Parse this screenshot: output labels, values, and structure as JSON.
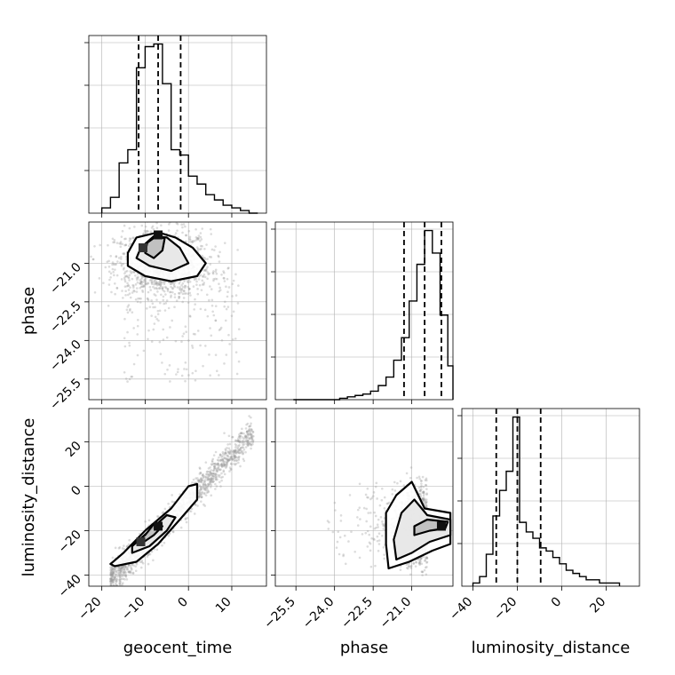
{
  "chart_data": {
    "type": "corner",
    "parameters": [
      "geocent_time",
      "phase",
      "luminosity_distance"
    ],
    "grid": true,
    "colors": {
      "line": "#000000",
      "grid": "#b0b0b0",
      "points": "#9a9a9a"
    },
    "ranges": {
      "geocent_time": [
        -23,
        18
      ],
      "phase": [
        -26.3,
        -19.4
      ],
      "luminosity_distance": [
        -45,
        35
      ]
    },
    "ticks": {
      "geocent_time": [
        -20,
        -10,
        0,
        10
      ],
      "phase": [
        -21.0,
        -22.5,
        -24.0,
        -25.5
      ],
      "luminosity_distance": [
        -40,
        -20,
        0,
        20
      ]
    },
    "tick_labels": {
      "geocent_time": [
        "−20",
        "−10",
        "0",
        "10"
      ],
      "phase": [
        "−21.0",
        "−22.5",
        "−24.0",
        "−25.5"
      ],
      "luminosity_distance": [
        "−40",
        "−20",
        "0",
        "20"
      ]
    },
    "quantiles": {
      "geocent_time": [
        -11.5,
        -7.0,
        -1.8
      ],
      "phase": [
        -21.3,
        -20.5,
        -19.85
      ],
      "luminosity_distance": [
        -29.5,
        -20.0,
        -9.5
      ]
    },
    "histograms": {
      "geocent_time": {
        "edges": [
          -20,
          -18,
          -16,
          -14,
          -12,
          -10,
          -8,
          -6,
          -4,
          -2,
          0,
          2,
          4,
          6,
          8,
          10,
          12,
          14,
          16
        ],
        "counts": [
          2,
          6,
          19,
          24,
          55,
          63,
          64,
          49,
          24,
          22,
          14,
          11,
          7,
          5,
          3,
          2,
          1,
          0
        ]
      },
      "phase": {
        "edges": [
          -25.6,
          -25.3,
          -25.0,
          -24.7,
          -24.4,
          -24.1,
          -23.8,
          -23.5,
          -23.2,
          -22.9,
          -22.6,
          -22.3,
          -22.0,
          -21.7,
          -21.4,
          -21.1,
          -20.8,
          -20.5,
          -20.2,
          -19.9,
          -19.6,
          -19.4
        ],
        "counts": [
          0,
          0,
          0,
          0,
          0,
          0,
          0.5,
          1,
          1.5,
          2,
          3,
          5,
          8,
          14,
          22,
          35,
          48,
          60,
          52,
          30,
          12
        ]
      },
      "luminosity_distance": {
        "edges": [
          -40,
          -37,
          -34,
          -31,
          -28,
          -25,
          -22,
          -19,
          -16,
          -13,
          -10,
          -7,
          -4,
          -1,
          2,
          5,
          8,
          11,
          14,
          17,
          20,
          23,
          26
        ],
        "counts": [
          1,
          3,
          10,
          22,
          30,
          36,
          53,
          20,
          17,
          15,
          12,
          11,
          9,
          7,
          5,
          4,
          3,
          2,
          2,
          1,
          1,
          1
        ]
      }
    },
    "scatter_model": {
      "phase_vs_geocent_time": {
        "mean": [
          -6.0,
          -21.0
        ],
        "sd": [
          5.5,
          0.65
        ],
        "tail": {
          "x_range": [
            -15,
            12
          ],
          "y_range": [
            -25.6,
            -21.3
          ]
        }
      },
      "luminosity_distance_vs_geocent_time": {
        "slope": 2.0,
        "intercept": -6.0,
        "x_range": [
          -18,
          15
        ],
        "scatter_sd": 3.5
      },
      "luminosity_distance_vs_phase": {
        "mean": [
          -20.8,
          -18.0
        ],
        "sd": [
          0.55,
          8.0
        ]
      }
    },
    "contours": {
      "phase_vs_geocent_time": [
        [
          [
            -14,
            -20.6
          ],
          [
            -12,
            -20.0
          ],
          [
            -7,
            -19.8
          ],
          [
            -3,
            -20.0
          ],
          [
            1,
            -20.4
          ],
          [
            4,
            -21.0
          ],
          [
            2,
            -21.5
          ],
          [
            -4,
            -21.7
          ],
          [
            -10,
            -21.5
          ],
          [
            -14,
            -21.1
          ]
        ],
        [
          [
            -11,
            -20.4
          ],
          [
            -8,
            -19.95
          ],
          [
            -5,
            -20.0
          ],
          [
            -2,
            -20.4
          ],
          [
            0,
            -21.0
          ],
          [
            -4,
            -21.3
          ],
          [
            -9,
            -21.1
          ],
          [
            -12,
            -20.8
          ]
        ],
        [
          [
            -9.5,
            -20.2
          ],
          [
            -7,
            -19.9
          ],
          [
            -5.5,
            -20.05
          ],
          [
            -6,
            -20.5
          ],
          [
            -8,
            -20.8
          ],
          [
            -10,
            -20.6
          ]
        ]
      ],
      "luminosity_distance_vs_geocent_time": [
        [
          [
            -17,
            -36
          ],
          [
            -12,
            -34
          ],
          [
            -7,
            -26
          ],
          [
            -2,
            -15
          ],
          [
            2,
            -6
          ],
          [
            2,
            1
          ],
          [
            0,
            0
          ],
          [
            -4,
            -10
          ],
          [
            -10,
            -20
          ],
          [
            -15,
            -30
          ],
          [
            -18,
            -35
          ]
        ],
        [
          [
            -13,
            -30
          ],
          [
            -9,
            -27
          ],
          [
            -5,
            -20
          ],
          [
            -3,
            -14
          ],
          [
            -5,
            -13
          ],
          [
            -9,
            -20
          ],
          [
            -13,
            -27
          ]
        ],
        [
          [
            -11,
            -26
          ],
          [
            -8,
            -22
          ],
          [
            -6,
            -18
          ],
          [
            -8,
            -17
          ],
          [
            -10,
            -22
          ],
          [
            -12,
            -25
          ]
        ]
      ],
      "luminosity_distance_vs_phase": [
        [
          [
            -21.9,
            -37
          ],
          [
            -21.1,
            -34
          ],
          [
            -20.2,
            -29
          ],
          [
            -19.5,
            -26
          ],
          [
            -19.5,
            -12
          ],
          [
            -20.5,
            -10
          ],
          [
            -21.0,
            2
          ],
          [
            -21.6,
            -4
          ],
          [
            -22.0,
            -12
          ],
          [
            -22.0,
            -26
          ]
        ],
        [
          [
            -21.6,
            -33
          ],
          [
            -21.0,
            -30
          ],
          [
            -20.3,
            -25
          ],
          [
            -19.5,
            -22
          ],
          [
            -19.5,
            -15
          ],
          [
            -20.4,
            -13
          ],
          [
            -20.9,
            -6
          ],
          [
            -21.4,
            -12
          ],
          [
            -21.7,
            -24
          ]
        ],
        [
          [
            -20.9,
            -22
          ],
          [
            -20.3,
            -20
          ],
          [
            -19.7,
            -19
          ],
          [
            -19.6,
            -16
          ],
          [
            -20.4,
            -15
          ],
          [
            -20.9,
            -18
          ]
        ]
      ]
    },
    "density_peaks": {
      "phase_vs_geocent_time": [
        [
          -7.0,
          -19.9
        ],
        [
          -10.5,
          -20.4
        ]
      ],
      "luminosity_distance_vs_geocent_time": [
        [
          -7.0,
          -18.0
        ],
        [
          -11.0,
          -25.0
        ]
      ],
      "luminosity_distance_vs_phase": [
        [
          -19.85,
          -18.0
        ]
      ]
    }
  }
}
